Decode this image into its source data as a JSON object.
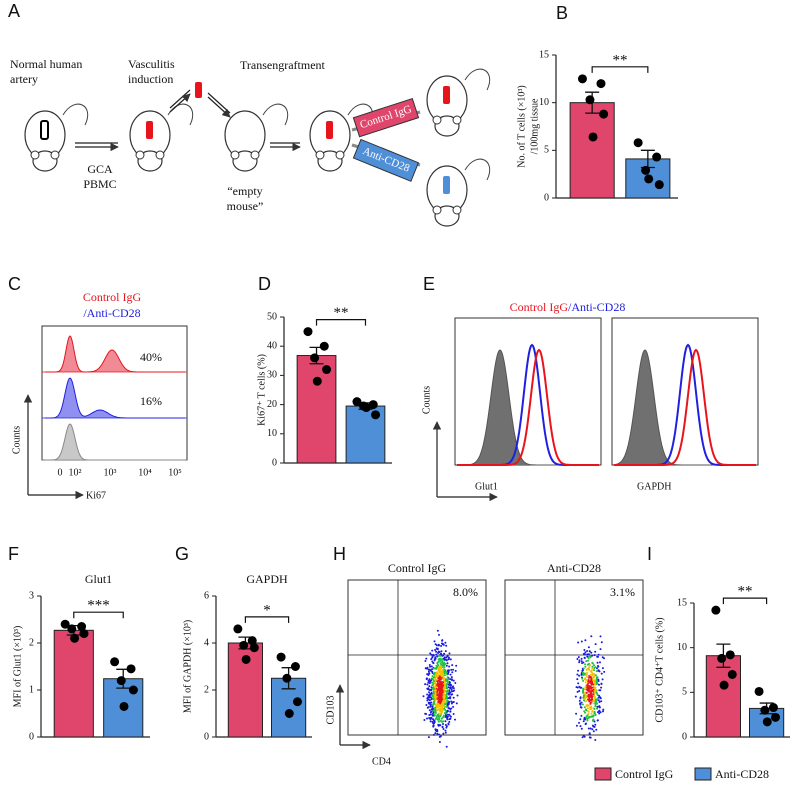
{
  "panel_labels": [
    "A",
    "B",
    "C",
    "D",
    "E",
    "F",
    "G",
    "H",
    "I"
  ],
  "figure_a": {
    "normal_artery": [
      "Normal human",
      "artery"
    ],
    "vasculitis": [
      "Vasculitis",
      "induction"
    ],
    "transengraftment": "Transengraftment",
    "pbmc": [
      "GCA",
      "PBMC"
    ],
    "empty_mouse": [
      "“empty",
      "mouse”"
    ],
    "control_box": "Control IgG",
    "anti_box": "Anti-CD28"
  },
  "flow_c": {
    "legend_control": "Control IgG",
    "legend_anti": "/Anti-CD28",
    "pct_control": "40%",
    "pct_anti": "16%",
    "ylabel": "Counts",
    "xlabel": "Ki67",
    "xticks": [
      "0",
      "10²",
      "10³",
      "10⁴",
      "10⁵"
    ]
  },
  "flow_e": {
    "legend_control": "Control IgG",
    "legend_anti": "/Anti-CD28",
    "ylabel": "Counts",
    "xlabels": [
      "Glut1",
      "GAPDH"
    ]
  },
  "flow_h": {
    "titles": [
      "Control IgG",
      "Anti-CD28"
    ],
    "percents": [
      "8.0%",
      "3.1%"
    ],
    "ylabel": "CD103",
    "xlabel": "CD4"
  },
  "chart_data": [
    {
      "type": "bar",
      "ylabel": [
        "No. of T cells (×10³)",
        "/100mg tissue"
      ],
      "ylim": [
        0,
        15
      ],
      "yticks": [
        0,
        5,
        10,
        15
      ],
      "values": [
        10,
        4.1
      ],
      "errors": [
        1.1,
        0.9
      ],
      "points": [
        [
          12.5,
          12.0,
          10.3,
          8.8,
          6.4
        ],
        [
          5.8,
          4.3,
          2.9,
          1.4,
          2.0
        ]
      ],
      "significance": "**"
    },
    {
      "type": "bar",
      "ylabel": [
        "Ki67⁺ T cells (%)"
      ],
      "ylim": [
        0,
        50
      ],
      "yticks": [
        0,
        10,
        20,
        30,
        40,
        50
      ],
      "values": [
        36.8,
        19.5
      ],
      "errors": [
        2.8,
        1.1
      ],
      "points": [
        [
          45,
          40,
          36,
          32,
          28
        ],
        [
          21,
          20,
          19.5,
          16.5,
          19
        ]
      ],
      "significance": "**"
    },
    {
      "type": "bar",
      "title": "Glut1",
      "ylabel": [
        "MFI of Glut1 (×10³)"
      ],
      "ylim": [
        0,
        3
      ],
      "yticks": [
        0,
        1,
        2,
        3
      ],
      "values": [
        2.27,
        1.24
      ],
      "errors": [
        0.1,
        0.2
      ],
      "points": [
        [
          2.4,
          2.35,
          2.3,
          2.2,
          2.1
        ],
        [
          1.6,
          1.45,
          1.2,
          1.0,
          0.65
        ]
      ],
      "significance": "***"
    },
    {
      "type": "bar",
      "title": "GAPDH",
      "ylabel": [
        "MFI of GAPDH (×10³)"
      ],
      "ylim": [
        0,
        6
      ],
      "yticks": [
        0,
        2,
        4,
        6
      ],
      "values": [
        4.0,
        2.5
      ],
      "errors": [
        0.25,
        0.45
      ],
      "points": [
        [
          4.6,
          4.1,
          3.9,
          3.8,
          3.3
        ],
        [
          3.4,
          3.0,
          2.5,
          1.5,
          1.0
        ]
      ],
      "significance": "*"
    },
    {
      "type": "bar",
      "ylabel": [
        "CD103⁺ CD4⁺T cells (%)"
      ],
      "ylim": [
        0,
        15
      ],
      "yticks": [
        0,
        5,
        10,
        15
      ],
      "values": [
        9.1,
        3.2
      ],
      "errors": [
        1.3,
        0.6
      ],
      "points": [
        [
          14.2,
          9.2,
          8.8,
          7.0,
          5.8
        ],
        [
          5.1,
          3.3,
          3.0,
          2.2,
          1.7
        ]
      ],
      "significance": "**"
    }
  ],
  "legend": {
    "items": [
      {
        "name": "Control IgG",
        "color": "#e0456b"
      },
      {
        "name": "Anti-CD28",
        "color": "#4f8fd8"
      }
    ]
  }
}
